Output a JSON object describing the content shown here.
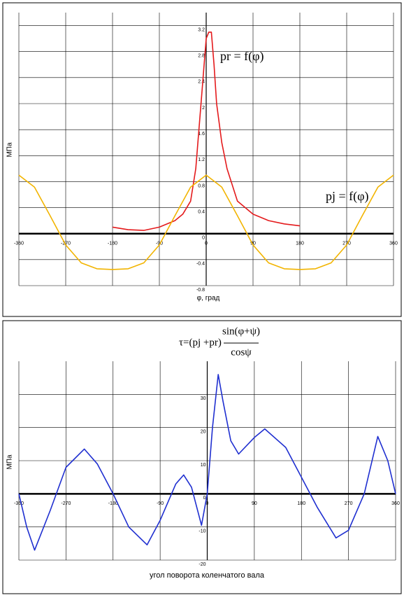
{
  "chart_data": [
    {
      "type": "line",
      "x_label": "φ, град",
      "y_label": "МПа",
      "xlim": [
        -360,
        360
      ],
      "xticks": [
        -360,
        -270,
        -180,
        -90,
        0,
        90,
        180,
        270,
        360
      ],
      "ylim": [
        -0.8,
        3.4
      ],
      "yticks": [
        -0.8,
        -0.4,
        0,
        0.4,
        0.8,
        1.2,
        1.6,
        2,
        2.4,
        2.8,
        3.2
      ],
      "grid": true,
      "annotations": [
        "pr = f(φ)",
        "pj = f(φ)"
      ],
      "series": [
        {
          "name": "pr",
          "color": "#e41a1c",
          "x": [
            -180,
            -150,
            -120,
            -90,
            -60,
            -45,
            -30,
            -20,
            -10,
            0,
            5,
            10,
            15,
            20,
            30,
            40,
            60,
            90,
            120,
            150,
            180
          ],
          "values": [
            0.1,
            0.06,
            0.05,
            0.1,
            0.2,
            0.3,
            0.5,
            1.0,
            2.0,
            3.0,
            3.1,
            3.1,
            2.6,
            2.0,
            1.4,
            1.0,
            0.5,
            0.3,
            0.2,
            0.15,
            0.12
          ]
        },
        {
          "name": "pj",
          "color": "#f2b400",
          "x": [
            -360,
            -330,
            -300,
            -270,
            -240,
            -210,
            -180,
            -150,
            -120,
            -90,
            -60,
            -30,
            0,
            30,
            60,
            90,
            120,
            150,
            180,
            210,
            240,
            270,
            300,
            330,
            360
          ],
          "values": [
            0.9,
            0.715,
            0.276,
            -0.174,
            -0.45,
            -0.541,
            -0.551,
            -0.541,
            -0.45,
            -0.174,
            0.276,
            0.715,
            0.9,
            0.715,
            0.276,
            -0.174,
            -0.45,
            -0.541,
            -0.551,
            -0.541,
            -0.45,
            -0.174,
            0.276,
            0.715,
            0.9
          ]
        }
      ]
    },
    {
      "type": "line",
      "x_label": "угол поворота коленчатого вала",
      "y_label": "МПа",
      "formula_left": "τ=(pj +pr)",
      "formula_numerator": "sin(φ+ψ)",
      "formula_denominator": "cosψ",
      "xlim": [
        -360,
        360
      ],
      "xticks": [
        -360,
        -270,
        -180,
        -90,
        0,
        90,
        180,
        270,
        360
      ],
      "ylim": [
        -20,
        40
      ],
      "yticks": [
        -20,
        -10,
        0,
        10,
        20,
        30
      ],
      "grid": true,
      "series": [
        {
          "name": "τ",
          "color": "#1f2fd0",
          "x": [
            -360,
            -345,
            -330,
            -300,
            -270,
            -235,
            -210,
            -180,
            -150,
            -115,
            -90,
            -60,
            -45,
            -30,
            -11,
            0,
            10,
            21,
            30,
            45,
            60,
            90,
            110,
            150,
            180,
            210,
            246,
            270,
            300,
            326,
            345,
            360
          ],
          "values": [
            0,
            -10,
            -17,
            -5,
            8,
            13.5,
            9,
            0,
            -10,
            -15.4,
            -8,
            3,
            5.7,
            2,
            -9.5,
            0,
            20,
            36,
            28,
            16,
            12,
            17,
            19.6,
            14,
            5,
            -4,
            -13.3,
            -11,
            0,
            17.3,
            10,
            0
          ]
        }
      ]
    }
  ]
}
